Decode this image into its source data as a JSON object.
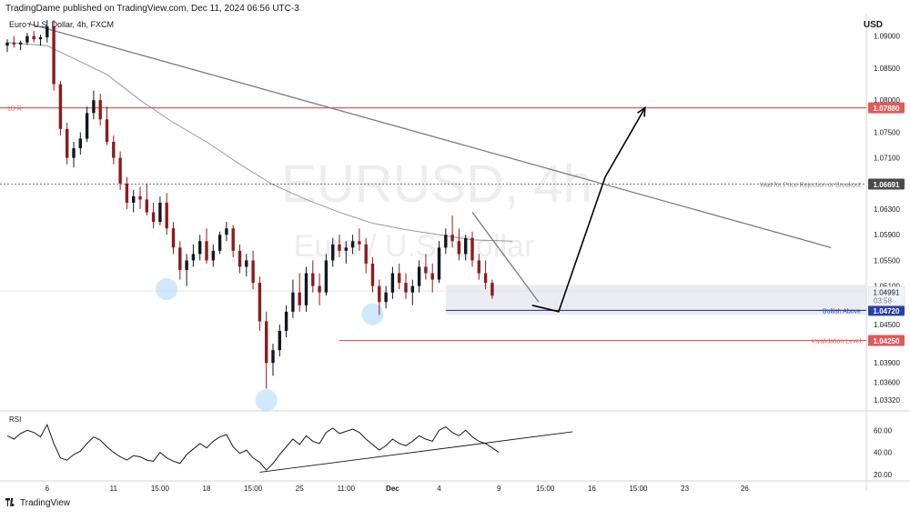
{
  "header": {
    "publisher": "TradingDame published on TradingView.com, Dec 11, 2024 06:56 UTC-3",
    "symbol": "Euro / U.S. Dollar, 4h, FXCM",
    "currency": "USD"
  },
  "footer": {
    "brand": "TradingView",
    "logo_icon": "tradingview-logo-icon"
  },
  "watermark": {
    "line1": "EURUSD, 4h",
    "line2": "Euro / U.S. Dollar"
  },
  "chart_data": {
    "type": "candlestick",
    "symbol": "EURUSD",
    "timeframe": "4h",
    "ylim": [
      1.0318,
      1.0935
    ],
    "y_ticks": [
      1.09,
      1.085,
      1.08,
      1.075,
      1.071,
      1.063,
      1.059,
      1.055,
      1.051,
      1.045,
      1.039,
      1.036,
      1.0332
    ],
    "y_tick_labels": [
      "1.09000",
      "1.08500",
      "1.08000",
      "1.07500",
      "1.07100",
      "1.06300",
      "1.05900",
      "1.05500",
      "1.05100",
      "1.04500",
      "1.03900",
      "1.03600",
      "1.03320"
    ],
    "x_ticks": [
      {
        "label": "6",
        "i": 6
      },
      {
        "label": "11",
        "i": 16
      },
      {
        "label": "15:00",
        "i": 23
      },
      {
        "label": "18",
        "i": 30
      },
      {
        "label": "15:00",
        "i": 37
      },
      {
        "label": "25",
        "i": 44
      },
      {
        "label": "11:00",
        "i": 51
      },
      {
        "label": "Dec",
        "i": 58,
        "bold": true
      },
      {
        "label": "4",
        "i": 65
      },
      {
        "label": "9",
        "i": 74
      },
      {
        "label": "15:00",
        "i": 81
      },
      {
        "label": "16",
        "i": 88
      },
      {
        "label": "15:00",
        "i": 95
      },
      {
        "label": "23",
        "i": 102
      },
      {
        "label": "26",
        "i": 111
      }
    ],
    "candles": [
      [
        1.0885,
        1.0895,
        1.0875,
        1.089
      ],
      [
        1.089,
        1.09,
        1.0882,
        1.0887
      ],
      [
        1.0887,
        1.0893,
        1.0878,
        1.089
      ],
      [
        1.089,
        1.0905,
        1.0886,
        1.09
      ],
      [
        1.09,
        1.0908,
        1.089,
        1.0895
      ],
      [
        1.0895,
        1.0902,
        1.0885,
        1.0898
      ],
      [
        1.0898,
        1.0925,
        1.089,
        1.0915
      ],
      [
        1.0915,
        1.0925,
        1.0815,
        1.0825
      ],
      [
        1.0825,
        1.083,
        1.0745,
        1.0755
      ],
      [
        1.0755,
        1.0765,
        1.07,
        1.071
      ],
      [
        1.071,
        1.0735,
        1.0695,
        1.0725
      ],
      [
        1.0725,
        1.075,
        1.0715,
        1.074
      ],
      [
        1.074,
        1.079,
        1.0735,
        1.078
      ],
      [
        1.078,
        1.0815,
        1.077,
        1.08
      ],
      [
        1.08,
        1.081,
        1.076,
        1.077
      ],
      [
        1.077,
        1.079,
        1.073,
        1.0735
      ],
      [
        1.0735,
        1.0745,
        1.07,
        1.071
      ],
      [
        1.071,
        1.072,
        1.066,
        1.067
      ],
      [
        1.067,
        1.068,
        1.063,
        1.064
      ],
      [
        1.064,
        1.066,
        1.0625,
        1.065
      ],
      [
        1.065,
        1.0665,
        1.063,
        1.0645
      ],
      [
        1.0645,
        1.067,
        1.062,
        1.0625
      ],
      [
        1.0625,
        1.064,
        1.06,
        1.061
      ],
      [
        1.061,
        1.065,
        1.0605,
        1.064
      ],
      [
        1.064,
        1.0655,
        1.059,
        1.06
      ],
      [
        1.06,
        1.061,
        1.056,
        1.057
      ],
      [
        1.057,
        1.058,
        1.052,
        1.0535
      ],
      [
        1.0535,
        1.056,
        1.051,
        1.055
      ],
      [
        1.055,
        1.0575,
        1.054,
        1.056
      ],
      [
        1.056,
        1.059,
        1.055,
        1.058
      ],
      [
        1.058,
        1.06,
        1.0545,
        1.055
      ],
      [
        1.055,
        1.0575,
        1.054,
        1.0565
      ],
      [
        1.0565,
        1.0595,
        1.056,
        1.059
      ],
      [
        1.059,
        1.061,
        1.058,
        1.06
      ],
      [
        1.06,
        1.0605,
        1.0555,
        1.0565
      ],
      [
        1.0565,
        1.0575,
        1.053,
        1.054
      ],
      [
        1.054,
        1.056,
        1.0525,
        1.055
      ],
      [
        1.055,
        1.0565,
        1.0505,
        1.0515
      ],
      [
        1.0515,
        1.0525,
        1.044,
        1.0455
      ],
      [
        1.0455,
        1.047,
        1.035,
        1.039
      ],
      [
        1.039,
        1.042,
        1.037,
        1.041
      ],
      [
        1.041,
        1.045,
        1.04,
        1.044
      ],
      [
        1.044,
        1.048,
        1.043,
        1.047
      ],
      [
        1.047,
        1.052,
        1.046,
        1.05
      ],
      [
        1.05,
        1.053,
        1.047,
        1.048
      ],
      [
        1.048,
        1.054,
        1.047,
        1.053
      ],
      [
        1.053,
        1.055,
        1.05,
        1.051
      ],
      [
        1.051,
        1.053,
        1.048,
        1.05
      ],
      [
        1.05,
        1.056,
        1.0495,
        1.055
      ],
      [
        1.055,
        1.0585,
        1.054,
        1.0575
      ],
      [
        1.0575,
        1.059,
        1.0555,
        1.0565
      ],
      [
        1.0565,
        1.058,
        1.0545,
        1.057
      ],
      [
        1.057,
        1.059,
        1.056,
        1.058
      ],
      [
        1.058,
        1.06,
        1.0565,
        1.0575
      ],
      [
        1.0575,
        1.0585,
        1.053,
        1.0545
      ],
      [
        1.0545,
        1.0555,
        1.05,
        1.051
      ],
      [
        1.051,
        1.052,
        1.0465,
        1.0485
      ],
      [
        1.0485,
        1.051,
        1.0475,
        1.05
      ],
      [
        1.05,
        1.054,
        1.049,
        1.053
      ],
      [
        1.053,
        1.0545,
        1.0505,
        1.0515
      ],
      [
        1.0515,
        1.053,
        1.049,
        1.05
      ],
      [
        1.05,
        1.052,
        1.048,
        1.051
      ],
      [
        1.051,
        1.055,
        1.05,
        1.054
      ],
      [
        1.054,
        1.056,
        1.052,
        1.053
      ],
      [
        1.053,
        1.0545,
        1.05,
        1.052
      ],
      [
        1.052,
        1.058,
        1.0515,
        1.057
      ],
      [
        1.057,
        1.06,
        1.056,
        1.059
      ],
      [
        1.059,
        1.062,
        1.057,
        1.058
      ],
      [
        1.058,
        1.06,
        1.055,
        1.056
      ],
      [
        1.056,
        1.059,
        1.055,
        1.0585
      ],
      [
        1.0585,
        1.0595,
        1.054,
        1.055
      ],
      [
        1.055,
        1.056,
        1.052,
        1.053
      ],
      [
        1.053,
        1.055,
        1.0505,
        1.0515
      ],
      [
        1.0515,
        1.052,
        1.049,
        1.0495
      ]
    ],
    "moving_average": [
      [
        0,
        1.089
      ],
      [
        6,
        1.0885
      ],
      [
        10,
        1.0865
      ],
      [
        15,
        1.084
      ],
      [
        20,
        1.08
      ],
      [
        25,
        1.0765
      ],
      [
        30,
        1.0735
      ],
      [
        35,
        1.07
      ],
      [
        40,
        1.0668
      ],
      [
        45,
        1.0645
      ],
      [
        50,
        1.0625
      ],
      [
        55,
        1.0608
      ],
      [
        60,
        1.0598
      ],
      [
        65,
        1.059
      ],
      [
        70,
        1.0582
      ],
      [
        76,
        1.058
      ]
    ],
    "levels": [
      {
        "name": "1D R",
        "value": 1.0788,
        "label": "1D R",
        "price_label": "1.07880",
        "color": "#e05a5a",
        "style": "solid"
      },
      {
        "name": "Wait for Price Rejection or Breakout",
        "value": 1.06691,
        "label": "Wait for Price Rejection or Breakout",
        "price_label": "1.06691",
        "color": "#787b86",
        "style": "dotted"
      },
      {
        "name": "Bullish Above",
        "value": 1.0472,
        "label": "Bullish Above",
        "price_label": "1.04720",
        "color": "#2a3fa8",
        "style": "solid"
      },
      {
        "name": "Invalidation Level",
        "value": 1.0425,
        "label": "Invalidation Level",
        "price_label": "1.04250",
        "color": "#e05a5a",
        "style": "solid"
      }
    ],
    "current_price": {
      "value": 1.04991,
      "label": "1.04991",
      "countdown": "03:58"
    },
    "zone": {
      "x_start": 66,
      "x_end": 124,
      "y_low": 1.0465,
      "y_high": 1.0512
    },
    "trendlines": [
      {
        "name": "main-downtrend",
        "p1": [
          3,
          1.092
        ],
        "p2": [
          124,
          1.057
        ],
        "color": "#787b86"
      },
      {
        "name": "short-downtrend",
        "p1": [
          70,
          1.0625
        ],
        "p2": [
          80,
          1.0485
        ],
        "color": "#787b86"
      }
    ],
    "projection": {
      "points": [
        [
          79,
          1.048
        ],
        [
          83,
          1.047
        ],
        [
          90,
          1.068
        ],
        [
          96,
          1.0788
        ]
      ],
      "color": "#000000"
    },
    "highlight_circles": [
      {
        "name": "low-1",
        "i": 24,
        "value": 1.0505
      },
      {
        "name": "low-2",
        "i": 39,
        "value": 1.0332
      },
      {
        "name": "low-3",
        "i": 55,
        "value": 1.0466
      }
    ],
    "rsi": {
      "label": "RSI",
      "ylim": [
        15,
        75
      ],
      "y_ticks": [
        60,
        40,
        20
      ],
      "y_tick_labels": [
        "60.00",
        "40.00",
        "20.00"
      ],
      "values": [
        55,
        52,
        57,
        60,
        58,
        54,
        65,
        48,
        35,
        33,
        38,
        41,
        48,
        54,
        51,
        45,
        40,
        36,
        33,
        37,
        36,
        33,
        32,
        40,
        35,
        32,
        30,
        38,
        43,
        48,
        44,
        50,
        54,
        56,
        45,
        39,
        42,
        35,
        31,
        24,
        30,
        38,
        45,
        52,
        47,
        55,
        50,
        48,
        58,
        62,
        57,
        59,
        61,
        58,
        52,
        47,
        42,
        46,
        52,
        48,
        46,
        50,
        55,
        52,
        50,
        60,
        63,
        58,
        55,
        60,
        54,
        50,
        48,
        44,
        40
      ],
      "trendline": {
        "p1": [
          38,
          22
        ],
        "p2": [
          81,
          57
        ]
      }
    }
  }
}
